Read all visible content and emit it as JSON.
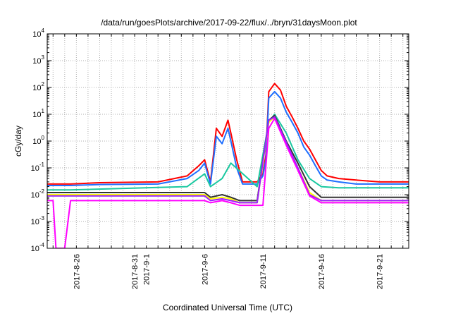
{
  "chart_data": {
    "type": "line",
    "title": "/data/run/goesPlots/archive/2017-09-22/flux/../bryn/31daysMoon.plot",
    "xlabel": "Coordinated Universal Time (UTC)",
    "ylabel": "cGy/day",
    "yscale": "log",
    "ylim": [
      0.0001,
      10000
    ],
    "xlim": [
      "2017-08-23T12:00",
      "2017-09-23T12:00"
    ],
    "grid": true,
    "legend": "none",
    "x_ticks": [
      "2017-08-26",
      "2017-08-31",
      "2017-09-01",
      "2017-09-06",
      "2017-09-11",
      "2017-09-16",
      "2017-09-21"
    ],
    "x_tick_labels": [
      "2017-8-26",
      "2017-8-31",
      "2017-9-1",
      "2017-9-6",
      "2017-9-11",
      "2017-9-16",
      "2017-9-21"
    ],
    "y_tick_labels": [
      {
        "base": "10",
        "exp": "-4"
      },
      {
        "base": "10",
        "exp": "-3"
      },
      {
        "base": "10",
        "exp": "-2"
      },
      {
        "base": "10",
        "exp": "-1"
      },
      {
        "base": "10",
        "exp": "0"
      },
      {
        "base": "10",
        "exp": "1"
      },
      {
        "base": "10",
        "exp": "2"
      },
      {
        "base": "10",
        "exp": "3"
      },
      {
        "base": "10",
        "exp": "4"
      }
    ],
    "series": [
      {
        "color": "#ff0000",
        "x": [
          "2017-08-23T12:00",
          "2017-08-24T00:00",
          "2017-08-25T00:00",
          "2017-08-25T12:00",
          "2017-08-28T00:00",
          "2017-09-02T00:00",
          "2017-09-04T12:00",
          "2017-09-05T12:00",
          "2017-09-06T00:00",
          "2017-09-06T12:00",
          "2017-09-07T00:00",
          "2017-09-07T12:00",
          "2017-09-08T00:00",
          "2017-09-08T06:00",
          "2017-09-08T18:00",
          "2017-09-09T06:00",
          "2017-09-10T00:00",
          "2017-09-10T12:00",
          "2017-09-11T00:00",
          "2017-09-11T06:00",
          "2017-09-11T12:00",
          "2017-09-12T00:00",
          "2017-09-12T12:00",
          "2017-09-13T00:00",
          "2017-09-13T12:00",
          "2017-09-14T00:00",
          "2017-09-14T12:00",
          "2017-09-15T00:00",
          "2017-09-15T12:00",
          "2017-09-16T00:00",
          "2017-09-16T12:00",
          "2017-09-17T12:00",
          "2017-09-19T00:00",
          "2017-09-21T00:00",
          "2017-09-23T12:00"
        ],
        "y": [
          0.025,
          0.025,
          0.025,
          0.025,
          0.028,
          0.03,
          0.05,
          0.12,
          0.2,
          0.03,
          3,
          1.5,
          6,
          2,
          0.2,
          0.03,
          0.03,
          0.03,
          0.06,
          0.3,
          70,
          140,
          80,
          20,
          8,
          3,
          1,
          0.5,
          0.2,
          0.08,
          0.05,
          0.04,
          0.035,
          0.03,
          0.03
        ]
      },
      {
        "color": "#1f6fff",
        "x": [
          "2017-08-23T12:00",
          "2017-08-24T00:00",
          "2017-08-25T00:00",
          "2017-08-25T12:00",
          "2017-08-28T00:00",
          "2017-09-02T00:00",
          "2017-09-04T12:00",
          "2017-09-05T12:00",
          "2017-09-06T00:00",
          "2017-09-06T12:00",
          "2017-09-07T00:00",
          "2017-09-07T12:00",
          "2017-09-08T00:00",
          "2017-09-08T06:00",
          "2017-09-08T18:00",
          "2017-09-09T06:00",
          "2017-09-10T00:00",
          "2017-09-10T12:00",
          "2017-09-11T00:00",
          "2017-09-11T06:00",
          "2017-09-11T12:00",
          "2017-09-12T00:00",
          "2017-09-12T12:00",
          "2017-09-13T00:00",
          "2017-09-13T12:00",
          "2017-09-14T00:00",
          "2017-09-14T12:00",
          "2017-09-15T00:00",
          "2017-09-15T12:00",
          "2017-09-16T00:00",
          "2017-09-16T12:00",
          "2017-09-17T12:00",
          "2017-09-19T00:00",
          "2017-09-21T00:00",
          "2017-09-23T12:00"
        ],
        "y": [
          0.022,
          0.022,
          0.022,
          0.022,
          0.024,
          0.025,
          0.04,
          0.08,
          0.15,
          0.025,
          1.5,
          0.8,
          3,
          1,
          0.1,
          0.025,
          0.025,
          0.025,
          0.05,
          0.2,
          40,
          70,
          40,
          12,
          5,
          2,
          0.6,
          0.3,
          0.12,
          0.05,
          0.035,
          0.03,
          0.025,
          0.025,
          0.025
        ]
      },
      {
        "color": "#19c8a0",
        "x": [
          "2017-08-23T12:00",
          "2017-08-25T12:00",
          "2017-09-04T12:00",
          "2017-09-06T00:00",
          "2017-09-06T12:00",
          "2017-09-07T12:00",
          "2017-09-08T06:00",
          "2017-09-10T12:00",
          "2017-09-11T12:00",
          "2017-09-12T00:00",
          "2017-09-13T00:00",
          "2017-09-14T00:00",
          "2017-09-15T00:00",
          "2017-09-16T00:00",
          "2017-09-17T12:00",
          "2017-09-23T12:00"
        ],
        "y": [
          0.015,
          0.015,
          0.02,
          0.06,
          0.02,
          0.04,
          0.15,
          0.02,
          5,
          10,
          2,
          0.2,
          0.04,
          0.02,
          0.018,
          0.018
        ]
      },
      {
        "color": "#333333",
        "x": [
          "2017-08-23T12:00",
          "2017-08-25T12:00",
          "2017-09-06T00:00",
          "2017-09-06T12:00",
          "2017-09-07T12:00",
          "2017-09-08T06:00",
          "2017-09-09T00:00",
          "2017-09-10T12:00",
          "2017-09-11T12:00",
          "2017-09-12T00:00",
          "2017-09-13T00:00",
          "2017-09-14T00:00",
          "2017-09-15T00:00",
          "2017-09-16T00:00",
          "2017-09-23T12:00"
        ],
        "y": [
          0.012,
          0.012,
          0.012,
          0.008,
          0.01,
          0.008,
          0.006,
          0.006,
          6,
          9,
          1,
          0.15,
          0.02,
          0.008,
          0.008
        ]
      },
      {
        "color": "#ffff00",
        "x": [
          "2017-08-23T12:00",
          "2017-08-25T12:00",
          "2017-09-06T00:00",
          "2017-09-06T12:00",
          "2017-09-07T12:00",
          "2017-09-08T06:00",
          "2017-09-09T00:00",
          "2017-09-10T12:00",
          "2017-09-11T12:00",
          "2017-09-12T00:00",
          "2017-09-13T00:00",
          "2017-09-14T00:00",
          "2017-09-15T00:00",
          "2017-09-16T00:00",
          "2017-09-23T12:00"
        ],
        "y": [
          0.01,
          0.01,
          0.01,
          0.007,
          0.008,
          0.007,
          0.005,
          0.005,
          5,
          8,
          0.8,
          0.1,
          0.012,
          0.006,
          0.006
        ]
      },
      {
        "color": "#9a1fff",
        "x": [
          "2017-08-23T12:00",
          "2017-08-25T12:00",
          "2017-09-06T00:00",
          "2017-09-06T12:00",
          "2017-09-07T12:00",
          "2017-09-08T06:00",
          "2017-09-09T00:00",
          "2017-09-10T12:00",
          "2017-09-11T12:00",
          "2017-09-12T00:00",
          "2017-09-13T00:00",
          "2017-09-14T00:00",
          "2017-09-15T00:00",
          "2017-09-16T00:00",
          "2017-09-23T12:00"
        ],
        "y": [
          0.009,
          0.009,
          0.009,
          0.006,
          0.007,
          0.006,
          0.005,
          0.005,
          6,
          8,
          0.9,
          0.1,
          0.01,
          0.006,
          0.006
        ]
      },
      {
        "color": "#ff00ff",
        "x": [
          "2017-08-23T12:00",
          "2017-08-24T00:00",
          "2017-08-24T06:00",
          "2017-08-25T00:00",
          "2017-08-25T12:00",
          "2017-09-04T12:00",
          "2017-09-06T00:00",
          "2017-09-06T12:00",
          "2017-09-07T12:00",
          "2017-09-08T06:00",
          "2017-09-09T00:00",
          "2017-09-10T12:00",
          "2017-09-11T00:00",
          "2017-09-11T12:00",
          "2017-09-12T00:00",
          "2017-09-13T00:00",
          "2017-09-14T00:00",
          "2017-09-15T00:00",
          "2017-09-16T00:00",
          "2017-09-23T12:00"
        ],
        "y": [
          0.006,
          0.006,
          0.0001,
          0.0001,
          0.006,
          0.006,
          0.006,
          0.005,
          0.006,
          0.005,
          0.004,
          0.004,
          0.004,
          3,
          7,
          0.7,
          0.08,
          0.009,
          0.005,
          0.005
        ]
      }
    ]
  }
}
